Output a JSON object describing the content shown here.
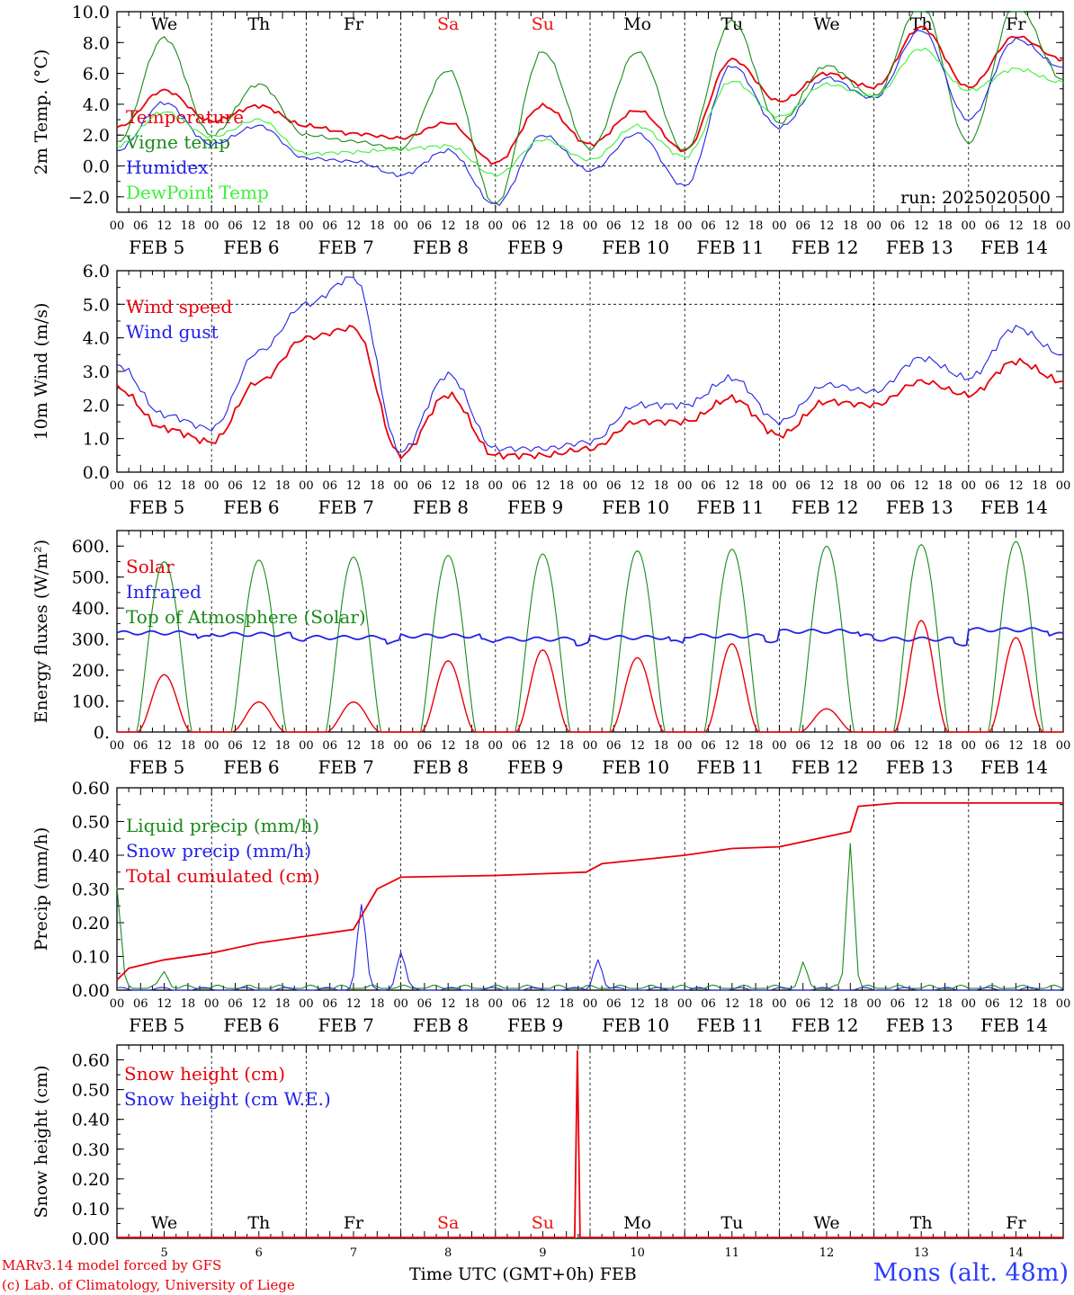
{
  "footer": {
    "model": "MARv3.14 model forced by GFS",
    "lab": "(c) Lab. of Climatology, University of Liege",
    "xlabel": "Time UTC (GMT+0h) FEB",
    "station": "Mons (alt. 48m)"
  },
  "colors": {
    "red": "#e8000b",
    "green": "#1a8a1a",
    "blue": "#2222e8",
    "lime": "#3cf03c",
    "weekend": "#ee1111"
  },
  "chart_data": [
    {
      "type": "line",
      "ylabel": "2m Temp. (°C)",
      "ylim": [
        -3,
        10
      ],
      "yticks": [
        -2,
        0,
        2,
        4,
        6,
        8,
        10
      ],
      "ytick_labels": [
        "−2.0",
        "0.0",
        "2.0",
        "4.0",
        "6.0",
        "8.0",
        "10.0"
      ],
      "hline": 0,
      "days_top": [
        "We",
        "Th",
        "Fr",
        "Sa",
        "Su",
        "Mo",
        "Tu",
        "We",
        "Th",
        "Fr"
      ],
      "annotation": "run: 2025020500",
      "x": [
        "2025-02-05T00",
        "2025-02-05T12",
        "2025-02-06T00",
        "2025-02-06T12",
        "2025-02-07T00",
        "2025-02-07T12",
        "2025-02-08T00",
        "2025-02-08T12",
        "2025-02-09T00",
        "2025-02-09T12",
        "2025-02-10T00",
        "2025-02-10T12",
        "2025-02-11T00",
        "2025-02-11T12",
        "2025-02-12T00",
        "2025-02-12T12",
        "2025-02-13T00",
        "2025-02-13T12",
        "2025-02-14T00",
        "2025-02-14T12",
        "2025-02-15T00"
      ],
      "series": [
        {
          "name": "Temperature",
          "color": "red",
          "values": [
            2.5,
            4.9,
            2.9,
            3.9,
            2.6,
            2.1,
            1.8,
            2.8,
            0.2,
            3.9,
            1.4,
            3.6,
            1.0,
            6.9,
            4.2,
            6.0,
            5.1,
            9.0,
            5.1,
            8.4,
            6.9
          ]
        },
        {
          "name": "Vigne temp",
          "color": "green",
          "values": [
            1.5,
            8.3,
            2.0,
            5.3,
            2.0,
            1.6,
            1.1,
            6.2,
            -2.5,
            7.4,
            1.1,
            7.4,
            1.0,
            9.4,
            2.8,
            6.5,
            4.5,
            10.5,
            1.5,
            10.5,
            5.6
          ]
        },
        {
          "name": "Humidex",
          "color": "blue",
          "values": [
            1.0,
            4.1,
            1.4,
            2.6,
            0.5,
            0.3,
            -0.6,
            1.0,
            -2.5,
            2.0,
            -0.3,
            2.1,
            -1.3,
            6.5,
            2.5,
            5.7,
            4.4,
            8.8,
            3.0,
            8.2,
            6.4
          ]
        },
        {
          "name": "DewPoint Temp",
          "color": "lime",
          "values": [
            1.3,
            3.5,
            1.9,
            3.0,
            0.8,
            0.9,
            1.1,
            1.3,
            -0.6,
            1.7,
            0.4,
            2.6,
            0.6,
            5.5,
            3.2,
            5.3,
            4.5,
            7.6,
            4.9,
            6.3,
            5.4
          ]
        }
      ]
    },
    {
      "type": "line",
      "ylabel": "10m Wind (m/s)",
      "ylim": [
        0,
        6
      ],
      "yticks": [
        0,
        1,
        2,
        3,
        4,
        5,
        6
      ],
      "ytick_labels": [
        "0.0",
        "1.0",
        "2.0",
        "3.0",
        "4.0",
        "5.0",
        "6.0"
      ],
      "hline": 5,
      "x": [
        "2025-02-05T00",
        "2025-02-05T12",
        "2025-02-06T00",
        "2025-02-06T12",
        "2025-02-07T00",
        "2025-02-07T12",
        "2025-02-08T00",
        "2025-02-08T12",
        "2025-02-09T00",
        "2025-02-09T12",
        "2025-02-10T00",
        "2025-02-10T12",
        "2025-02-11T00",
        "2025-02-11T12",
        "2025-02-12T00",
        "2025-02-12T12",
        "2025-02-13T00",
        "2025-02-13T12",
        "2025-02-14T00",
        "2025-02-14T12",
        "2025-02-15T00"
      ],
      "series": [
        {
          "name": "Wind speed",
          "color": "red",
          "values": [
            2.5,
            1.3,
            0.9,
            2.7,
            4.0,
            4.3,
            0.5,
            2.3,
            0.5,
            0.5,
            0.7,
            1.5,
            1.5,
            2.2,
            1.1,
            2.1,
            2.0,
            2.7,
            2.3,
            3.3,
            2.7
          ]
        },
        {
          "name": "Wind gust",
          "color": "blue",
          "values": [
            3.2,
            1.7,
            1.3,
            3.6,
            5.0,
            5.8,
            0.6,
            2.9,
            0.7,
            0.7,
            0.9,
            2.0,
            2.0,
            2.8,
            1.5,
            2.6,
            2.4,
            3.4,
            2.8,
            4.3,
            3.5
          ]
        }
      ]
    },
    {
      "type": "line",
      "ylabel": "Energy fluxes (W/m²)",
      "ylim": [
        0,
        650
      ],
      "yticks": [
        0,
        100,
        200,
        300,
        400,
        500,
        600
      ],
      "ytick_labels": [
        "0.",
        "100.",
        "200.",
        "300.",
        "400.",
        "500.",
        "600."
      ],
      "solar_peaks": [
        185,
        97,
        97,
        230,
        265,
        240,
        285,
        75,
        360,
        305
      ],
      "toa_peaks": [
        550,
        555,
        565,
        570,
        575,
        585,
        590,
        600,
        605,
        615
      ],
      "infrared_values": [
        320,
        315,
        305,
        310,
        300,
        305,
        310,
        325,
        300,
        330
      ],
      "series": [
        {
          "name": "Solar",
          "color": "red"
        },
        {
          "name": "Infrared",
          "color": "blue"
        },
        {
          "name": "Top of Atmosphere (Solar)",
          "color": "green"
        }
      ]
    },
    {
      "type": "line",
      "ylabel": "Precip (mm/h)",
      "ylim": [
        0,
        0.6
      ],
      "yticks": [
        0,
        0.1,
        0.2,
        0.3,
        0.4,
        0.5,
        0.6
      ],
      "ytick_labels": [
        "0.00",
        "0.10",
        "0.20",
        "0.30",
        "0.40",
        "0.50",
        "0.60"
      ],
      "cumulated_x": [
        "2025-02-05T00",
        "2025-02-05T03",
        "2025-02-05T12",
        "2025-02-06T00",
        "2025-02-06T12",
        "2025-02-07T00",
        "2025-02-07T12",
        "2025-02-07T18",
        "2025-02-08T00",
        "2025-02-09T00",
        "2025-02-09T23",
        "2025-02-10T03",
        "2025-02-11T00",
        "2025-02-11T12",
        "2025-02-12T00",
        "2025-02-12T18",
        "2025-02-12T20",
        "2025-02-13T06",
        "2025-02-15T00"
      ],
      "cumulated_values": [
        0.03,
        0.065,
        0.09,
        0.11,
        0.14,
        0.16,
        0.18,
        0.3,
        0.335,
        0.34,
        0.35,
        0.375,
        0.4,
        0.42,
        0.425,
        0.47,
        0.545,
        0.555,
        0.555
      ],
      "liquid_peaks": [
        {
          "x": "2025-02-05T00",
          "value": 0.3
        },
        {
          "x": "2025-02-05T12",
          "value": 0.05
        },
        {
          "x": "2025-02-12T18",
          "value": 0.43
        },
        {
          "x": "2025-02-12T06",
          "value": 0.07
        }
      ],
      "snow_peaks": [
        {
          "x": "2025-02-07T14",
          "value": 0.25
        },
        {
          "x": "2025-02-08T00",
          "value": 0.11
        },
        {
          "x": "2025-02-10T02",
          "value": 0.09
        }
      ],
      "series": [
        {
          "name": "Liquid precip (mm/h)",
          "color": "green"
        },
        {
          "name": "Snow precip (mm/h)",
          "color": "blue"
        },
        {
          "name": "Total cumulated (cm)",
          "color": "red"
        }
      ]
    },
    {
      "type": "line",
      "ylabel": "Snow height (cm)",
      "ylim": [
        0,
        0.65
      ],
      "yticks": [
        0,
        0.1,
        0.2,
        0.3,
        0.4,
        0.5,
        0.6
      ],
      "ytick_labels": [
        "0.00",
        "0.10",
        "0.20",
        "0.30",
        "0.40",
        "0.50",
        "0.60"
      ],
      "days_bottom": [
        "We",
        "Th",
        "Fr",
        "Sa",
        "Su",
        "Mo",
        "Tu",
        "We",
        "Th",
        "Fr"
      ],
      "day_numbers": [
        "5",
        "6",
        "7",
        "8",
        "9",
        "10",
        "11",
        "12",
        "13",
        "14"
      ],
      "spike": {
        "x": "2025-02-09T21",
        "value": 0.63
      },
      "series": [
        {
          "name": "Snow height (cm)",
          "color": "red"
        },
        {
          "name": "Snow height (cm W.E.)",
          "color": "blue"
        }
      ]
    }
  ],
  "hour_labels": [
    "00",
    "06",
    "12",
    "18"
  ],
  "date_labels": [
    "FEB  5",
    "FEB  6",
    "FEB  7",
    "FEB  8",
    "FEB  9",
    "FEB 10",
    "FEB 11",
    "FEB 12",
    "FEB 13",
    "FEB 14"
  ]
}
